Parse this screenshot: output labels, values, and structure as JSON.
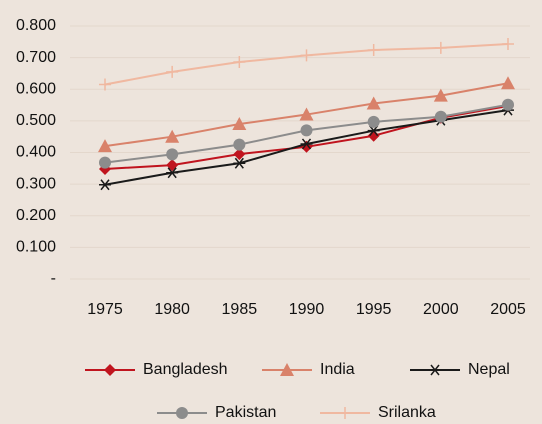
{
  "chart_data": {
    "type": "line",
    "categories": [
      "1975",
      "1980",
      "1985",
      "1990",
      "1995",
      "2000",
      "2005"
    ],
    "series": [
      {
        "name": "Bangladesh",
        "color": "#c0141e",
        "marker": "diamond",
        "values": [
          0.348,
          0.36,
          0.395,
          0.418,
          0.453,
          0.51,
          0.547
        ]
      },
      {
        "name": "India",
        "color": "#d9826a",
        "marker": "triangle",
        "values": [
          0.42,
          0.45,
          0.49,
          0.52,
          0.555,
          0.58,
          0.619
        ]
      },
      {
        "name": "Nepal",
        "color": "#1a1a1a",
        "marker": "asterisk",
        "values": [
          0.298,
          0.336,
          0.366,
          0.427,
          0.469,
          0.502,
          0.534
        ]
      },
      {
        "name": "Pakistan",
        "color": "#8c8c8c",
        "marker": "circle",
        "values": [
          0.368,
          0.394,
          0.425,
          0.47,
          0.497,
          0.513,
          0.551
        ]
      },
      {
        "name": "Srilanka",
        "color": "#f0b8a0",
        "marker": "plus",
        "values": [
          0.615,
          0.655,
          0.686,
          0.707,
          0.724,
          0.731,
          0.743
        ]
      }
    ],
    "ylim": [
      0,
      0.8
    ],
    "yticks": [
      {
        "value": 0,
        "label": "-"
      },
      {
        "value": 0.1,
        "label": "0.100"
      },
      {
        "value": 0.2,
        "label": "0.200"
      },
      {
        "value": 0.3,
        "label": "0.300"
      },
      {
        "value": 0.4,
        "label": "0.400"
      },
      {
        "value": 0.5,
        "label": "0.500"
      },
      {
        "value": 0.6,
        "label": "0.600"
      },
      {
        "value": 0.7,
        "label": "0.700"
      },
      {
        "value": 0.8,
        "label": "0.800"
      }
    ],
    "grid": true,
    "legend": "bottom"
  }
}
